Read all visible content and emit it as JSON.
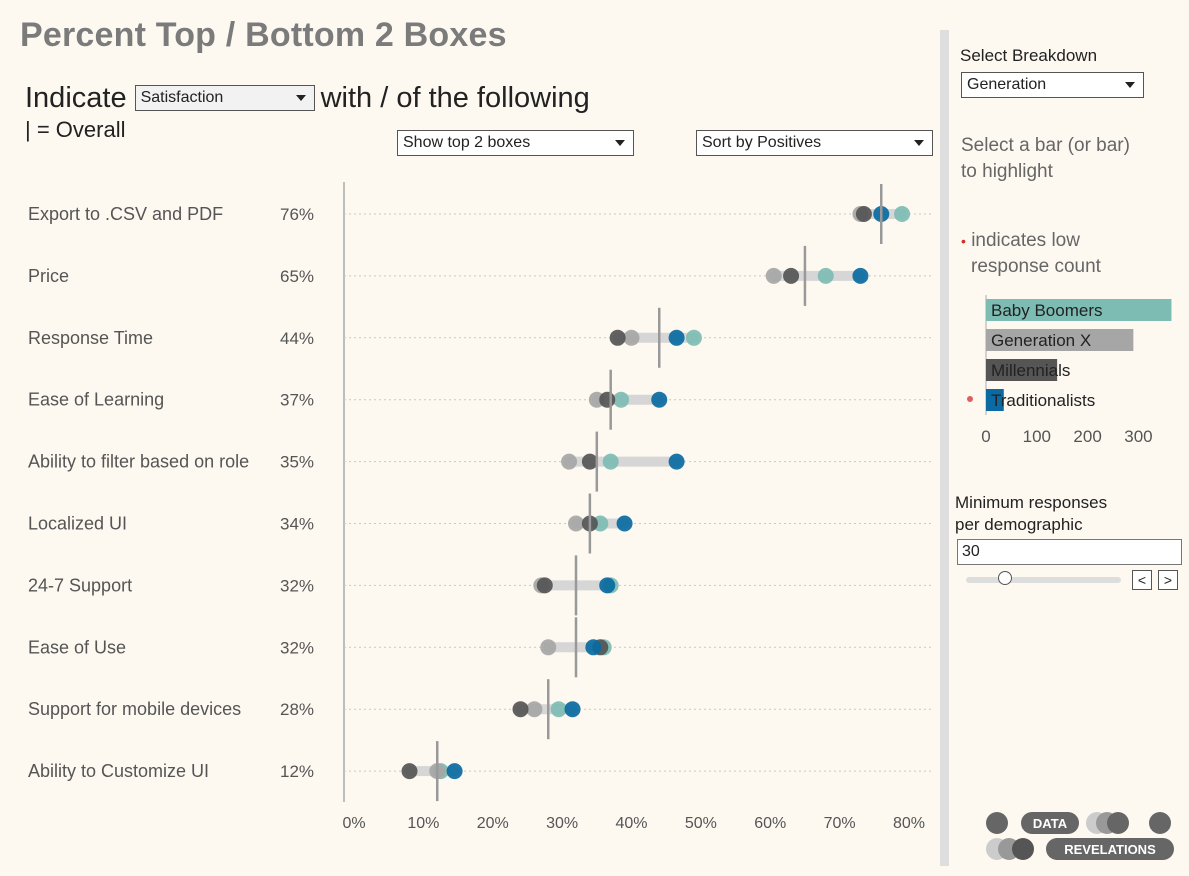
{
  "title": "Percent Top / Bottom 2 Boxes",
  "indicate": {
    "prefix": "Indicate",
    "suffix": "with / of the following",
    "selected": "Satisfaction"
  },
  "overall_note": "| = Overall",
  "boxes_select": "Show top 2 boxes",
  "sort_select": "Sort by Positives",
  "colors": {
    "baby_boomers": "#7dbcb3",
    "generation_x": "#a6a6a6",
    "millennials": "#555555",
    "traditionalists": "#0a6aa1",
    "background": "#fdf9f1"
  },
  "chart_data": {
    "type": "scatter",
    "categories": [
      "Export to .CSV and PDF",
      "Price",
      "Response Time",
      "Ease of Learning",
      "Ability to filter based on role",
      "Localized UI",
      "24-7 Support",
      "Ease of Use",
      "Support for mobile devices",
      "Ability to Customize UI"
    ],
    "overall_labels": [
      "76%",
      "65%",
      "44%",
      "37%",
      "35%",
      "34%",
      "32%",
      "32%",
      "28%",
      "12%"
    ],
    "overall": [
      76,
      65,
      44,
      37,
      35,
      34,
      32,
      32,
      28,
      12
    ],
    "series": [
      {
        "name": "Baby Boomers",
        "values": [
          79,
          68,
          49,
          38.5,
          37,
          35.5,
          37,
          36,
          29.5,
          12.5
        ]
      },
      {
        "name": "Generation X",
        "values": [
          73,
          60.5,
          40,
          35,
          31,
          32,
          27,
          28,
          26,
          12
        ]
      },
      {
        "name": "Millennials",
        "values": [
          73.5,
          63,
          38,
          36.5,
          34,
          34,
          27.5,
          35.5,
          24,
          8
        ]
      },
      {
        "name": "Traditionalists",
        "values": [
          76,
          73,
          46.5,
          44,
          46.5,
          39,
          36.5,
          34.5,
          31.5,
          14.5
        ]
      }
    ],
    "xlim": [
      0,
      80
    ],
    "x_ticks": [
      "0%",
      "10%",
      "20%",
      "30%",
      "40%",
      "50%",
      "60%",
      "70%",
      "80%"
    ],
    "grid": "horizontal-dotted"
  },
  "right_panel": {
    "breakdown_label": "Select Breakdown",
    "breakdown_selected": "Generation",
    "hint_line1": "Select a bar (or bar)",
    "hint_line2": "to highlight",
    "low_line1": "indicates low",
    "low_line2": "response count",
    "red_dot": "•",
    "mini_chart": {
      "type": "bar",
      "categories": [
        "Baby Boomers",
        "Generation X",
        "Millennials",
        "Traditionalists"
      ],
      "values": [
        365,
        290,
        140,
        35
      ],
      "low_count_flags": [
        false,
        false,
        false,
        true
      ],
      "xlim": [
        0,
        370
      ],
      "x_ticks": [
        "0",
        "100",
        "200",
        "300"
      ]
    },
    "min_label_line1": "Minimum responses",
    "min_label_line2": "per demographic",
    "min_value": "30",
    "prev_symbol": "<",
    "next_symbol": ">"
  },
  "logo": {
    "word1": "DATA",
    "word2": "REVELATIONS"
  }
}
